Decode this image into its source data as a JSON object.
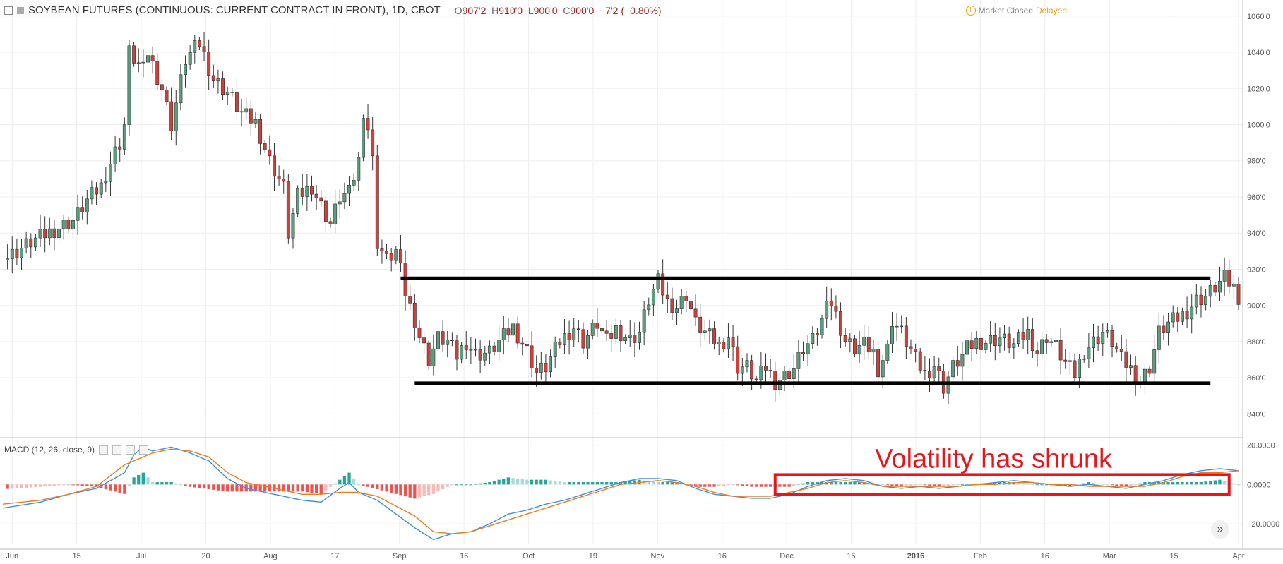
{
  "header": {
    "symbol": "SOYBEAN FUTURES (CONTINUOUS: CURRENT CONTRACT IN FRONT), 1D, CBOT",
    "open_label": "O",
    "open": "907'2",
    "high_label": "H",
    "high": "910'0",
    "low_label": "L",
    "low": "900'0",
    "close_label": "C",
    "close": "900'0",
    "change": "−7'2 (−0.80%)"
  },
  "status": {
    "market": "Market Closed",
    "delayed": "Delayed",
    "warn_icon": "!"
  },
  "macd_label": "MACD (12, 26, close, 9)",
  "annotation": "Volatility has shrunk",
  "scroll_icon": "»",
  "colors": {
    "up": "#5b9e7e",
    "down": "#d0403a",
    "macd_line": "#3d8fe8",
    "signal_line": "#f07a20",
    "hist_pos_strong": "#26a69a",
    "hist_pos_weak": "#a3dcd4",
    "hist_neg_strong": "#ef5350",
    "hist_neg_weak": "#f7b8b8",
    "annotation": "#e8161a"
  },
  "chart_data": [
    {
      "type": "candlestick",
      "title": "SOYBEAN FUTURES (CONTINUOUS: CURRENT CONTRACT IN FRONT), 1D, CBOT",
      "x_ticks": [
        "Jun",
        "15",
        "Jul",
        "20",
        "Aug",
        "17",
        "Sep",
        "16",
        "Oct",
        "19",
        "Nov",
        "16",
        "Dec",
        "15",
        "2016",
        "Feb",
        "16",
        "Mar",
        "15",
        "Apr"
      ],
      "y_ticks": [
        "840'0",
        "860'0",
        "880'0",
        "900'0",
        "920'0",
        "940'0",
        "960'0",
        "980'0",
        "1000'0",
        "1020'0",
        "1040'0",
        "1060'0"
      ],
      "ylim": [
        830,
        1065
      ],
      "close_path": [
        [
          0,
          925
        ],
        [
          6,
          935
        ],
        [
          11,
          942
        ],
        [
          15,
          947
        ],
        [
          18,
          958
        ],
        [
          21,
          966
        ],
        [
          22,
          973
        ],
        [
          24,
          985
        ],
        [
          25,
          990
        ],
        [
          26,
          1000
        ],
        [
          27,
          1040
        ],
        [
          30,
          1030
        ],
        [
          31,
          1040
        ],
        [
          34,
          1020
        ],
        [
          36,
          1000
        ],
        [
          39,
          1036
        ],
        [
          42,
          1045
        ],
        [
          45,
          1025
        ],
        [
          48,
          1018
        ],
        [
          51,
          1006
        ],
        [
          54,
          1001
        ],
        [
          57,
          980
        ],
        [
          60,
          965
        ],
        [
          61,
          940
        ],
        [
          63,
          960
        ],
        [
          66,
          966
        ],
        [
          68,
          955
        ],
        [
          70,
          945
        ],
        [
          72,
          960
        ],
        [
          74,
          962
        ],
        [
          76,
          980
        ],
        [
          77,
          1008
        ],
        [
          78,
          998
        ],
        [
          79,
          980
        ],
        [
          80,
          935
        ],
        [
          82,
          925
        ],
        [
          84,
          930
        ],
        [
          85,
          919
        ],
        [
          86,
          907
        ],
        [
          88,
          892
        ],
        [
          89,
          883
        ],
        [
          91,
          870
        ],
        [
          93,
          882
        ],
        [
          95,
          880
        ],
        [
          97,
          872
        ],
        [
          99,
          880
        ],
        [
          101,
          873
        ],
        [
          104,
          874
        ],
        [
          106,
          880
        ],
        [
          109,
          888
        ],
        [
          112,
          875
        ],
        [
          114,
          863
        ],
        [
          116,
          866
        ],
        [
          119,
          880
        ],
        [
          122,
          888
        ],
        [
          124,
          880
        ],
        [
          127,
          890
        ],
        [
          129,
          880
        ],
        [
          131,
          887
        ],
        [
          134,
          881
        ],
        [
          136,
          885
        ],
        [
          138,
          903
        ],
        [
          140,
          913
        ],
        [
          142,
          902
        ],
        [
          144,
          899
        ],
        [
          146,
          906
        ],
        [
          148,
          890
        ],
        [
          150,
          885
        ],
        [
          153,
          878
        ],
        [
          155,
          883
        ],
        [
          157,
          866
        ],
        [
          159,
          866
        ],
        [
          161,
          858
        ],
        [
          163,
          866
        ],
        [
          165,
          858
        ],
        [
          167,
          861
        ],
        [
          169,
          865
        ],
        [
          171,
          876
        ],
        [
          173,
          880
        ],
        [
          175,
          891
        ],
        [
          176,
          907
        ],
        [
          178,
          894
        ],
        [
          180,
          880
        ],
        [
          182,
          876
        ],
        [
          184,
          878
        ],
        [
          186,
          874
        ],
        [
          187,
          865
        ],
        [
          189,
          876
        ],
        [
          190,
          892
        ],
        [
          192,
          885
        ],
        [
          193,
          880
        ],
        [
          195,
          870
        ],
        [
          197,
          862
        ],
        [
          199,
          867
        ],
        [
          201,
          855
        ],
        [
          203,
          866
        ],
        [
          205,
          872
        ],
        [
          206,
          876
        ],
        [
          208,
          880
        ],
        [
          210,
          880
        ],
        [
          213,
          882
        ],
        [
          216,
          878
        ],
        [
          219,
          885
        ],
        [
          221,
          874
        ],
        [
          223,
          883
        ],
        [
          225,
          877
        ],
        [
          227,
          868
        ],
        [
          229,
          862
        ],
        [
          231,
          875
        ],
        [
          233,
          880
        ],
        [
          235,
          885
        ],
        [
          237,
          880
        ],
        [
          239,
          870
        ],
        [
          241,
          865
        ],
        [
          243,
          858
        ],
        [
          245,
          866
        ],
        [
          247,
          885
        ],
        [
          249,
          890
        ],
        [
          251,
          893
        ],
        [
          253,
          897
        ],
        [
          255,
          903
        ],
        [
          257,
          905
        ],
        [
          259,
          910
        ],
        [
          261,
          915
        ],
        [
          263,
          910
        ],
        [
          264,
          905
        ]
      ],
      "annotations": [
        {
          "type": "horizontal_line",
          "y": 915,
          "x_range": [
            85,
            258
          ]
        },
        {
          "type": "horizontal_line",
          "y": 857,
          "x_range": [
            88,
            258
          ]
        }
      ]
    },
    {
      "type": "macd",
      "title": "MACD (12, 26, close, 9)",
      "y_ticks": [
        "20.0000",
        "0.0000",
        "−20.0000"
      ],
      "ylim": [
        -30,
        22
      ],
      "series": [
        {
          "name": "MACD",
          "path": [
            [
              0,
              -12
            ],
            [
              8,
              -9
            ],
            [
              14,
              -5
            ],
            [
              20,
              -2
            ],
            [
              26,
              6
            ],
            [
              28,
              15
            ],
            [
              30,
              19
            ],
            [
              32,
              17
            ],
            [
              36,
              19
            ],
            [
              40,
              16
            ],
            [
              44,
              12
            ],
            [
              48,
              3
            ],
            [
              52,
              -2
            ],
            [
              56,
              -4
            ],
            [
              60,
              -6
            ],
            [
              64,
              -8
            ],
            [
              68,
              -9
            ],
            [
              72,
              -2
            ],
            [
              74,
              1
            ],
            [
              76,
              -4
            ],
            [
              80,
              -8
            ],
            [
              84,
              -15
            ],
            [
              88,
              -22
            ],
            [
              92,
              -28
            ],
            [
              96,
              -25
            ],
            [
              100,
              -24
            ],
            [
              104,
              -20
            ],
            [
              108,
              -15
            ],
            [
              112,
              -13
            ],
            [
              116,
              -10
            ],
            [
              120,
              -8
            ],
            [
              124,
              -5
            ],
            [
              128,
              -2
            ],
            [
              132,
              1
            ],
            [
              136,
              3
            ],
            [
              140,
              3
            ],
            [
              144,
              2
            ],
            [
              148,
              -2
            ],
            [
              152,
              -5
            ],
            [
              156,
              -6
            ],
            [
              160,
              -7
            ],
            [
              164,
              -7
            ],
            [
              168,
              -5
            ],
            [
              172,
              -1
            ],
            [
              176,
              2
            ],
            [
              180,
              3
            ],
            [
              184,
              2
            ],
            [
              188,
              -1
            ],
            [
              192,
              -2
            ],
            [
              196,
              -1
            ],
            [
              200,
              -2
            ],
            [
              204,
              -1
            ],
            [
              208,
              0
            ],
            [
              212,
              1
            ],
            [
              216,
              2
            ],
            [
              220,
              1
            ],
            [
              224,
              0
            ],
            [
              228,
              -1
            ],
            [
              232,
              0
            ],
            [
              236,
              -1
            ],
            [
              240,
              -2
            ],
            [
              244,
              0
            ],
            [
              248,
              2
            ],
            [
              252,
              5
            ],
            [
              256,
              7
            ],
            [
              260,
              8
            ],
            [
              264,
              7
            ]
          ]
        },
        {
          "name": "Signal",
          "path": [
            [
              0,
              -10
            ],
            [
              8,
              -8
            ],
            [
              14,
              -5
            ],
            [
              20,
              -1
            ],
            [
              26,
              10
            ],
            [
              28,
              12
            ],
            [
              32,
              16
            ],
            [
              36,
              18
            ],
            [
              40,
              17
            ],
            [
              44,
              14
            ],
            [
              48,
              6
            ],
            [
              52,
              1
            ],
            [
              56,
              -1
            ],
            [
              60,
              -3
            ],
            [
              64,
              -5
            ],
            [
              68,
              -5
            ],
            [
              72,
              -4
            ],
            [
              76,
              -4
            ],
            [
              80,
              -6
            ],
            [
              84,
              -11
            ],
            [
              88,
              -16
            ],
            [
              92,
              -24
            ],
            [
              96,
              -25
            ],
            [
              100,
              -24
            ],
            [
              104,
              -21
            ],
            [
              108,
              -18
            ],
            [
              112,
              -15
            ],
            [
              116,
              -12
            ],
            [
              120,
              -9
            ],
            [
              124,
              -6
            ],
            [
              128,
              -3
            ],
            [
              132,
              0
            ],
            [
              136,
              1
            ],
            [
              140,
              2
            ],
            [
              144,
              1
            ],
            [
              148,
              -1
            ],
            [
              152,
              -4
            ],
            [
              156,
              -6
            ],
            [
              160,
              -6
            ],
            [
              164,
              -6
            ],
            [
              168,
              -4
            ],
            [
              172,
              -2
            ],
            [
              176,
              1
            ],
            [
              180,
              2
            ],
            [
              184,
              1
            ],
            [
              188,
              -1
            ],
            [
              192,
              -1
            ],
            [
              196,
              -1
            ],
            [
              200,
              -1
            ],
            [
              204,
              -1
            ],
            [
              208,
              0
            ],
            [
              212,
              0
            ],
            [
              216,
              1
            ],
            [
              220,
              1
            ],
            [
              224,
              0
            ],
            [
              228,
              0
            ],
            [
              232,
              -1
            ],
            [
              236,
              -1
            ],
            [
              240,
              -1
            ],
            [
              244,
              -1
            ],
            [
              248,
              1
            ],
            [
              252,
              4
            ],
            [
              256,
              6
            ],
            [
              260,
              6
            ],
            [
              264,
              7
            ]
          ]
        }
      ],
      "annotations": [
        {
          "type": "rectangle",
          "x_range": [
            165,
            262
          ],
          "y_range": [
            -5,
            5
          ],
          "label": "Volatility has shrunk"
        }
      ]
    }
  ]
}
